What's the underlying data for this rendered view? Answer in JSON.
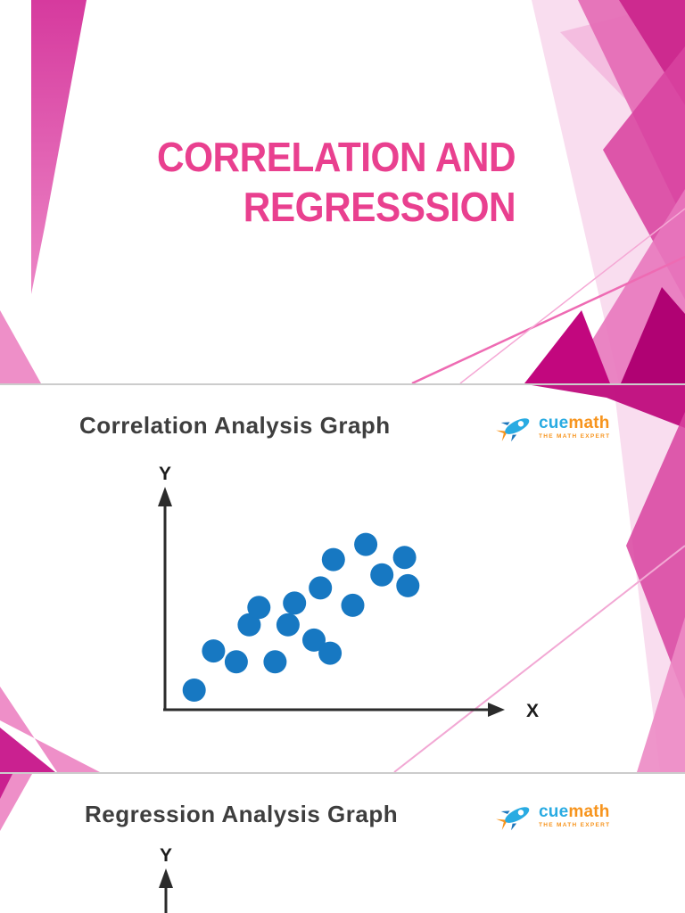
{
  "document": {
    "type": "presentation-preview",
    "slide_count_visible": 3
  },
  "slide1": {
    "title_line1": "CORRELATION AND",
    "title_line2": "REGRESSSION"
  },
  "slide2": {
    "heading": "Correlation Analysis Graph"
  },
  "slide3": {
    "heading": "Regression Analysis Graph"
  },
  "logo": {
    "brand_blue": "cue",
    "brand_orange": "math",
    "tagline": "THE MATH EXPERT"
  },
  "colors": {
    "title_pink": "#e9408f",
    "heading_gray": "#3e3e3e",
    "dot_blue": "#1778c2",
    "axis_black": "#2b2b2b",
    "logo_blue": "#29abe2",
    "logo_orange": "#f7941d",
    "magenta_deep": "#c2077e",
    "magenta": "#d8429f",
    "pink_medium": "#e877bd",
    "pink_light": "#ee8fc8",
    "pink_pale": "#f8d7ec",
    "separator_gray": "#cccccc"
  },
  "chart_data": [
    {
      "type": "scatter",
      "title": "Correlation Analysis Graph",
      "xlabel": "X",
      "ylabel": "Y",
      "x_range": [
        0,
        10
      ],
      "y_range": [
        0,
        10
      ],
      "axes": "unlabeled arrows, no ticks, no gridlines",
      "trend": "positive correlation cluster rising left-to-right",
      "points": [
        [
          0.9,
          0.9
        ],
        [
          1.5,
          2.7
        ],
        [
          2.2,
          2.2
        ],
        [
          2.6,
          3.9
        ],
        [
          3.4,
          2.2
        ],
        [
          2.9,
          4.7
        ],
        [
          3.8,
          3.9
        ],
        [
          4.0,
          4.9
        ],
        [
          4.6,
          3.2
        ],
        [
          5.1,
          2.6
        ],
        [
          4.8,
          5.6
        ],
        [
          5.8,
          4.8
        ],
        [
          5.2,
          6.9
        ],
        [
          6.2,
          7.6
        ],
        [
          6.7,
          6.2
        ],
        [
          7.4,
          7.0
        ],
        [
          7.5,
          5.7
        ]
      ]
    },
    {
      "type": "scatter",
      "title": "Regression Analysis Graph",
      "ylabel": "Y",
      "points": [],
      "note": "only Y-axis arrow visible, page cut off at bottom"
    }
  ]
}
